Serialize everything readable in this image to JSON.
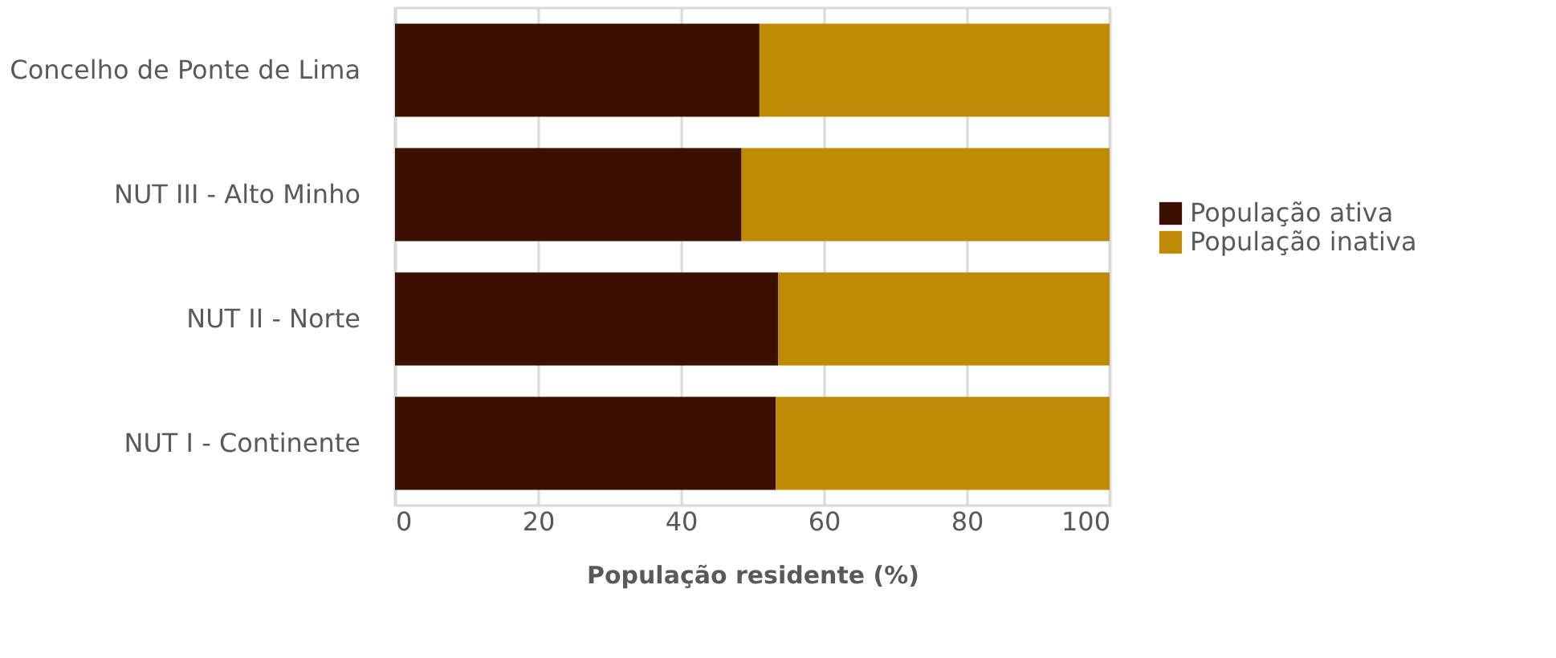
{
  "chart_data": {
    "type": "bar",
    "orientation": "horizontal",
    "stacked": true,
    "xlabel": "População residente (%)",
    "categories": [
      "Concelho de Ponte de Lima",
      "NUT III - Alto Minho",
      "NUT II - Norte",
      "NUT I - Continente"
    ],
    "series": [
      {
        "name": "População ativa",
        "color": "#3a1100",
        "values": [
          51.0,
          48.5,
          53.6,
          53.3
        ]
      },
      {
        "name": "População inativa",
        "color": "#bf8b04",
        "values": [
          49.0,
          51.5,
          46.4,
          46.7
        ]
      }
    ],
    "xlim": [
      0,
      100
    ],
    "xticks": [
      0,
      20,
      40,
      60,
      80,
      100
    ],
    "grid": "x",
    "legend": "right"
  }
}
